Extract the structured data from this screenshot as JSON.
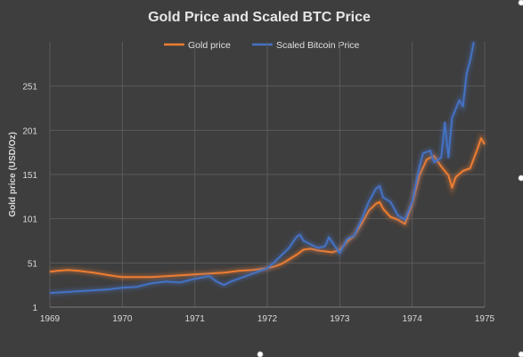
{
  "chart_data": {
    "type": "line",
    "title": "Gold Price and Scaled BTC Price",
    "xlabel": "",
    "ylabel": "Gold price (USD/Oz)",
    "xlim": [
      1969,
      1975
    ],
    "ylim": [
      1,
      301
    ],
    "x_ticks": [
      1969,
      1970,
      1971,
      1972,
      1973,
      1974,
      1975
    ],
    "y_ticks": [
      1,
      51,
      101,
      151,
      201,
      251
    ],
    "grid": true,
    "legend_position": "top",
    "series": [
      {
        "name": "Gold price",
        "color": "#ed7d31",
        "points": [
          [
            1969.0,
            41
          ],
          [
            1969.1,
            42
          ],
          [
            1969.25,
            43
          ],
          [
            1969.4,
            42
          ],
          [
            1969.5,
            41
          ],
          [
            1969.6,
            40
          ],
          [
            1969.75,
            38
          ],
          [
            1969.9,
            36
          ],
          [
            1970.0,
            35
          ],
          [
            1970.2,
            35
          ],
          [
            1970.4,
            35
          ],
          [
            1970.6,
            36
          ],
          [
            1970.8,
            37
          ],
          [
            1971.0,
            38
          ],
          [
            1971.2,
            39
          ],
          [
            1971.4,
            40
          ],
          [
            1971.6,
            42
          ],
          [
            1971.8,
            43
          ],
          [
            1972.0,
            45
          ],
          [
            1972.1,
            47
          ],
          [
            1972.2,
            50
          ],
          [
            1972.3,
            55
          ],
          [
            1972.4,
            60
          ],
          [
            1972.5,
            66
          ],
          [
            1972.6,
            67
          ],
          [
            1972.7,
            65
          ],
          [
            1972.8,
            64
          ],
          [
            1972.9,
            63
          ],
          [
            1973.0,
            66
          ],
          [
            1973.1,
            75
          ],
          [
            1973.2,
            82
          ],
          [
            1973.3,
            95
          ],
          [
            1973.4,
            110
          ],
          [
            1973.5,
            118
          ],
          [
            1973.55,
            120
          ],
          [
            1973.6,
            112
          ],
          [
            1973.7,
            103
          ],
          [
            1973.8,
            100
          ],
          [
            1973.9,
            95
          ],
          [
            1974.0,
            118
          ],
          [
            1974.1,
            150
          ],
          [
            1974.2,
            168
          ],
          [
            1974.3,
            172
          ],
          [
            1974.4,
            160
          ],
          [
            1974.5,
            150
          ],
          [
            1974.55,
            136
          ],
          [
            1974.6,
            148
          ],
          [
            1974.7,
            155
          ],
          [
            1974.8,
            158
          ],
          [
            1974.9,
            180
          ],
          [
            1974.95,
            192
          ],
          [
            1975.0,
            185
          ]
        ]
      },
      {
        "name": "Scaled Bitcoin Price",
        "color": "#4472c4",
        "points": [
          [
            1969.0,
            17
          ],
          [
            1969.2,
            18
          ],
          [
            1969.4,
            19
          ],
          [
            1969.6,
            20
          ],
          [
            1969.8,
            21
          ],
          [
            1970.0,
            23
          ],
          [
            1970.2,
            24
          ],
          [
            1970.4,
            28
          ],
          [
            1970.6,
            30
          ],
          [
            1970.8,
            29
          ],
          [
            1971.0,
            33
          ],
          [
            1971.2,
            36
          ],
          [
            1971.3,
            30
          ],
          [
            1971.4,
            26
          ],
          [
            1971.5,
            30
          ],
          [
            1971.7,
            36
          ],
          [
            1971.9,
            42
          ],
          [
            1972.0,
            45
          ],
          [
            1972.1,
            52
          ],
          [
            1972.2,
            60
          ],
          [
            1972.3,
            68
          ],
          [
            1972.4,
            80
          ],
          [
            1972.45,
            83
          ],
          [
            1972.5,
            76
          ],
          [
            1972.6,
            72
          ],
          [
            1972.7,
            68
          ],
          [
            1972.8,
            70
          ],
          [
            1972.85,
            80
          ],
          [
            1972.9,
            74
          ],
          [
            1973.0,
            62
          ],
          [
            1973.1,
            78
          ],
          [
            1973.2,
            82
          ],
          [
            1973.3,
            100
          ],
          [
            1973.4,
            120
          ],
          [
            1973.5,
            135
          ],
          [
            1973.55,
            138
          ],
          [
            1973.6,
            125
          ],
          [
            1973.7,
            120
          ],
          [
            1973.8,
            105
          ],
          [
            1973.9,
            100
          ],
          [
            1974.0,
            120
          ],
          [
            1974.1,
            160
          ],
          [
            1974.15,
            175
          ],
          [
            1974.25,
            178
          ],
          [
            1974.3,
            165
          ],
          [
            1974.4,
            170
          ],
          [
            1974.45,
            210
          ],
          [
            1974.5,
            170
          ],
          [
            1974.55,
            215
          ],
          [
            1974.6,
            225
          ],
          [
            1974.65,
            235
          ],
          [
            1974.7,
            228
          ],
          [
            1974.75,
            265
          ],
          [
            1974.8,
            280
          ],
          [
            1974.85,
            301
          ]
        ]
      }
    ]
  }
}
